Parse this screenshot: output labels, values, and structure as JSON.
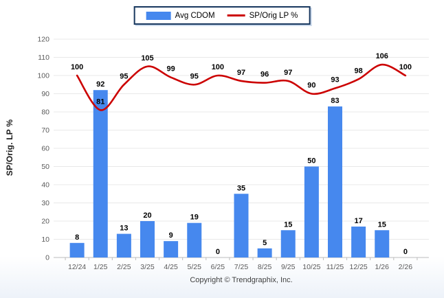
{
  "chart_data": {
    "type": "bar",
    "subtype": "bar+line combo",
    "categories": [
      "12/24",
      "1/25",
      "2/25",
      "3/25",
      "4/25",
      "5/25",
      "6/25",
      "7/25",
      "8/25",
      "9/25",
      "10/25",
      "11/25",
      "12/25",
      "1/26",
      "2/26"
    ],
    "series": [
      {
        "name": "Avg CDOM",
        "type": "bar",
        "color": "#4688ee",
        "values": [
          8,
          92,
          13,
          20,
          9,
          19,
          0,
          35,
          5,
          15,
          50,
          83,
          17,
          15,
          0
        ]
      },
      {
        "name": "SP/Orig LP %",
        "type": "line",
        "color": "#cc0000",
        "values": [
          100,
          81,
          95,
          105,
          99,
          95,
          100,
          97,
          96,
          97,
          90,
          93,
          98,
          106,
          100
        ]
      }
    ],
    "title": "",
    "xlabel": "",
    "ylabel": "SP/Orig. LP %",
    "ylim": [
      0,
      120
    ],
    "ytick_step": 10,
    "grid": true,
    "legend_position": "top-center",
    "data_labels": true
  },
  "legend": {
    "items": [
      {
        "label": "Avg CDOM",
        "swatch": "bar-swatch"
      },
      {
        "label": "SP/Orig LP %",
        "swatch": "line-swatch"
      }
    ]
  },
  "footer": {
    "copyright": "Copyright © Trendgraphix, Inc."
  },
  "colors": {
    "bar": "#4688ee",
    "line": "#cc0000",
    "grid": "#e8e8e8",
    "axis_line": "#bcbcbc",
    "tick_text": "#595959",
    "data_label": "#000000",
    "legend_border": "#17375e"
  }
}
